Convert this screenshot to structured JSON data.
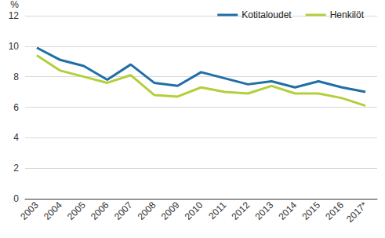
{
  "chart_data": {
    "type": "line",
    "y_label": "%",
    "categories": [
      "2003",
      "2004",
      "2005",
      "2006",
      "2007",
      "2008",
      "2009",
      "2010",
      "2011",
      "2012",
      "2013",
      "2014",
      "2015",
      "2016",
      "2017*"
    ],
    "series": [
      {
        "name": "Kotitaloudet",
        "color": "#1f6fa6",
        "values": [
          9.9,
          9.1,
          8.7,
          7.8,
          8.8,
          7.6,
          7.4,
          8.3,
          7.9,
          7.5,
          7.7,
          7.3,
          7.7,
          7.3,
          7.0
        ]
      },
      {
        "name": "Henkilöt",
        "color": "#b3cf3c",
        "values": [
          9.4,
          8.4,
          8.0,
          7.6,
          8.1,
          6.8,
          6.7,
          7.3,
          7.0,
          6.9,
          7.4,
          6.9,
          6.9,
          6.6,
          6.1
        ]
      }
    ],
    "ylim": [
      0,
      12
    ],
    "yticks": [
      0,
      2,
      4,
      6,
      8,
      10,
      12
    ],
    "grid": true,
    "legend": "top-right"
  }
}
